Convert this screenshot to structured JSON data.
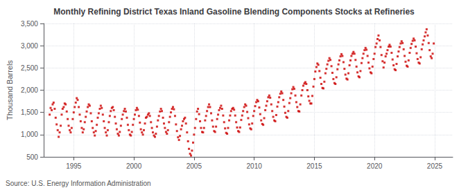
{
  "chart_data": {
    "type": "scatter",
    "title": "Monthly Refining District Texas Inland Gasoline Blending Components Stocks at Refineries",
    "ylabel": "Thousand Barrels",
    "annotation": "Source: U.S. Energy Information Administration",
    "color": "#cc0000",
    "marker": "square",
    "grid": true,
    "xlim": [
      1992.5,
      2026.5
    ],
    "xticks": [
      1995,
      2000,
      2005,
      2010,
      2015,
      2020,
      2025
    ],
    "ylim": [
      500,
      3500
    ],
    "yticks": [
      500,
      {
        "value": 1000,
        "label": "1,000"
      },
      {
        "value": 1500,
        "label": "1,500"
      },
      {
        "value": 2000,
        "label": "2,000"
      },
      {
        "value": 2500,
        "label": "2,500"
      },
      {
        "value": 3000,
        "label": "3,000"
      },
      {
        "value": 3500,
        "label": "3,500"
      }
    ],
    "x": [
      1993.0,
      1993.08,
      1993.17,
      1993.25,
      1993.33,
      1993.42,
      1993.5,
      1993.58,
      1993.67,
      1993.75,
      1993.83,
      1993.92,
      1994.0,
      1994.08,
      1994.17,
      1994.25,
      1994.33,
      1994.42,
      1994.5,
      1994.58,
      1994.67,
      1994.75,
      1994.83,
      1994.92,
      1995.0,
      1995.08,
      1995.17,
      1995.25,
      1995.33,
      1995.42,
      1995.5,
      1995.58,
      1995.67,
      1995.75,
      1995.83,
      1995.92,
      1996.0,
      1996.08,
      1996.17,
      1996.25,
      1996.33,
      1996.42,
      1996.5,
      1996.58,
      1996.67,
      1996.75,
      1996.83,
      1996.92,
      1997.0,
      1997.08,
      1997.17,
      1997.25,
      1997.33,
      1997.42,
      1997.5,
      1997.58,
      1997.67,
      1997.75,
      1997.83,
      1997.92,
      1998.0,
      1998.08,
      1998.17,
      1998.25,
      1998.33,
      1998.42,
      1998.5,
      1998.58,
      1998.67,
      1998.75,
      1998.83,
      1998.92,
      1999.0,
      1999.08,
      1999.17,
      1999.25,
      1999.33,
      1999.42,
      1999.5,
      1999.58,
      1999.67,
      1999.75,
      1999.83,
      1999.92,
      2000.0,
      2000.08,
      2000.17,
      2000.25,
      2000.33,
      2000.42,
      2000.5,
      2000.58,
      2000.67,
      2000.75,
      2000.83,
      2000.92,
      2001.0,
      2001.08,
      2001.17,
      2001.25,
      2001.33,
      2001.42,
      2001.5,
      2001.58,
      2001.67,
      2001.75,
      2001.83,
      2001.92,
      2002.0,
      2002.08,
      2002.17,
      2002.25,
      2002.33,
      2002.42,
      2002.5,
      2002.58,
      2002.67,
      2002.75,
      2002.83,
      2002.92,
      2003.0,
      2003.08,
      2003.17,
      2003.25,
      2003.33,
      2003.42,
      2003.5,
      2003.58,
      2003.67,
      2003.75,
      2003.83,
      2003.92,
      2004.0,
      2004.08,
      2004.17,
      2004.25,
      2004.33,
      2004.42,
      2004.5,
      2004.58,
      2004.67,
      2004.75,
      2004.83,
      2004.92,
      2005.0,
      2005.08,
      2005.17,
      2005.25,
      2005.33,
      2005.42,
      2005.5,
      2005.58,
      2005.67,
      2005.75,
      2005.83,
      2005.92,
      2006.0,
      2006.08,
      2006.17,
      2006.25,
      2006.33,
      2006.42,
      2006.5,
      2006.58,
      2006.67,
      2006.75,
      2006.83,
      2006.92,
      2007.0,
      2007.08,
      2007.17,
      2007.25,
      2007.33,
      2007.42,
      2007.5,
      2007.58,
      2007.67,
      2007.75,
      2007.83,
      2007.92,
      2008.0,
      2008.08,
      2008.17,
      2008.25,
      2008.33,
      2008.42,
      2008.5,
      2008.58,
      2008.67,
      2008.75,
      2008.83,
      2008.92,
      2009.0,
      2009.08,
      2009.17,
      2009.25,
      2009.33,
      2009.42,
      2009.5,
      2009.58,
      2009.67,
      2009.75,
      2009.83,
      2009.92,
      2010.0,
      2010.08,
      2010.17,
      2010.25,
      2010.33,
      2010.42,
      2010.5,
      2010.58,
      2010.67,
      2010.75,
      2010.83,
      2010.92,
      2011.0,
      2011.08,
      2011.17,
      2011.25,
      2011.33,
      2011.42,
      2011.5,
      2011.58,
      2011.67,
      2011.75,
      2011.83,
      2011.92,
      2012.0,
      2012.08,
      2012.17,
      2012.25,
      2012.33,
      2012.42,
      2012.5,
      2012.58,
      2012.67,
      2012.75,
      2012.83,
      2012.92,
      2013.0,
      2013.08,
      2013.17,
      2013.25,
      2013.33,
      2013.42,
      2013.5,
      2013.58,
      2013.67,
      2013.75,
      2013.83,
      2013.92,
      2014.0,
      2014.08,
      2014.17,
      2014.25,
      2014.33,
      2014.42,
      2014.5,
      2014.58,
      2014.67,
      2014.75,
      2014.83,
      2014.92,
      2015.0,
      2015.08,
      2015.17,
      2015.25,
      2015.33,
      2015.42,
      2015.5,
      2015.58,
      2015.67,
      2015.75,
      2015.83,
      2015.92,
      2016.0,
      2016.08,
      2016.17,
      2016.25,
      2016.33,
      2016.42,
      2016.5,
      2016.58,
      2016.67,
      2016.75,
      2016.83,
      2016.92,
      2017.0,
      2017.08,
      2017.17,
      2017.25,
      2017.33,
      2017.42,
      2017.5,
      2017.58,
      2017.67,
      2017.75,
      2017.83,
      2017.92,
      2018.0,
      2018.08,
      2018.17,
      2018.25,
      2018.33,
      2018.42,
      2018.5,
      2018.58,
      2018.67,
      2018.75,
      2018.83,
      2018.92,
      2019.0,
      2019.08,
      2019.17,
      2019.25,
      2019.33,
      2019.42,
      2019.5,
      2019.58,
      2019.67,
      2019.75,
      2019.83,
      2019.92,
      2020.0,
      2020.08,
      2020.17,
      2020.25,
      2020.33,
      2020.42,
      2020.5,
      2020.58,
      2020.67,
      2020.75,
      2020.83,
      2020.92,
      2021.0,
      2021.08,
      2021.17,
      2021.25,
      2021.33,
      2021.42,
      2021.5,
      2021.58,
      2021.67,
      2021.75,
      2021.83,
      2021.92,
      2022.0,
      2022.08,
      2022.17,
      2022.25,
      2022.33,
      2022.42,
      2022.5,
      2022.58,
      2022.67,
      2022.75,
      2022.83,
      2022.92,
      2023.0,
      2023.08,
      2023.17,
      2023.25,
      2023.33,
      2023.42,
      2023.5,
      2023.58,
      2023.67,
      2023.75,
      2023.83,
      2023.92,
      2024.0,
      2024.08,
      2024.17,
      2024.25,
      2024.33,
      2024.42,
      2024.5,
      2024.58,
      2024.67,
      2024.75,
      2024.83,
      2024.92
    ],
    "values": [
      1450,
      1600,
      1550,
      1680,
      1720,
      1580,
      1380,
      1230,
      1100,
      950,
      1050,
      1200,
      1450,
      1580,
      1620,
      1700,
      1680,
      1520,
      1350,
      1200,
      1100,
      1050,
      1150,
      1350,
      1500,
      1620,
      1720,
      1820,
      1780,
      1620,
      1450,
      1300,
      1150,
      1050,
      1120,
      1280,
      1400,
      1520,
      1620,
      1680,
      1650,
      1480,
      1300,
      1150,
      1050,
      980,
      1080,
      1220,
      1380,
      1480,
      1580,
      1650,
      1600,
      1450,
      1300,
      1150,
      1050,
      980,
      1100,
      1280,
      1420,
      1530,
      1600,
      1620,
      1550,
      1400,
      1250,
      1120,
      1020,
      980,
      1060,
      1200,
      1350,
      1450,
      1530,
      1580,
      1520,
      1380,
      1220,
      1100,
      1000,
      980,
      1060,
      1220,
      1350,
      1450,
      1550,
      1600,
      1560,
      1420,
      1270,
      1120,
      1050,
      1000,
      1100,
      1250,
      1380,
      1400,
      1450,
      1480,
      1420,
      1280,
      1150,
      1050,
      980,
      950,
      1020,
      1180,
      1320,
      1420,
      1520,
      1580,
      1530,
      1380,
      1250,
      1150,
      1060,
      1020,
      1100,
      1280,
      1400,
      1500,
      1580,
      1620,
      1570,
      1420,
      1230,
      1080,
      940,
      880,
      970,
      1120,
      1200,
      1300,
      1350,
      1380,
      1250,
      1050,
      850,
      680,
      570,
      530,
      640,
      820,
      1000,
      1150,
      1350,
      1520,
      1580,
      1460,
      1300,
      1150,
      1060,
      1050,
      1150,
      1320,
      1420,
      1530,
      1620,
      1680,
      1620,
      1480,
      1320,
      1180,
      1080,
      1060,
      1180,
      1350,
      1450,
      1550,
      1600,
      1650,
      1580,
      1430,
      1280,
      1140,
      1040,
      1020,
      1150,
      1320,
      1430,
      1530,
      1580,
      1600,
      1560,
      1430,
      1280,
      1160,
      1080,
      1060,
      1160,
      1330,
      1430,
      1530,
      1620,
      1680,
      1650,
      1510,
      1370,
      1230,
      1140,
      1120,
      1250,
      1420,
      1530,
      1640,
      1730,
      1780,
      1750,
      1610,
      1460,
      1320,
      1240,
      1220,
      1370,
      1550,
      1650,
      1750,
      1840,
      1880,
      1830,
      1680,
      1530,
      1400,
      1320,
      1300,
      1440,
      1630,
      1730,
      1840,
      1920,
      1970,
      1930,
      1780,
      1630,
      1490,
      1400,
      1380,
      1530,
      1710,
      1820,
      1930,
      2020,
      2070,
      2030,
      1880,
      1730,
      1620,
      1530,
      1520,
      1680,
      1880,
      2000,
      2100,
      2150,
      2180,
      2140,
      2000,
      1860,
      1760,
      1700,
      1700,
      1870,
      2080,
      2250,
      2420,
      2520,
      2600,
      2570,
      2430,
      2280,
      2140,
      2050,
      2040,
      2190,
      2380,
      2480,
      2580,
      2660,
      2720,
      2680,
      2540,
      2390,
      2250,
      2160,
      2140,
      2290,
      2470,
      2580,
      2670,
      2760,
      2810,
      2770,
      2630,
      2480,
      2350,
      2260,
      2240,
      2380,
      2560,
      2670,
      2770,
      2820,
      2860,
      2820,
      2680,
      2530,
      2400,
      2310,
      2290,
      2430,
      2610,
      2720,
      2820,
      2900,
      2950,
      2910,
      2770,
      2620,
      2490,
      2400,
      2380,
      2530,
      2700,
      2820,
      2970,
      3050,
      3150,
      3230,
      3120,
      2970,
      2790,
      2650,
      2510,
      2620,
      2760,
      2820,
      2900,
      2980,
      3020,
      2980,
      2840,
      2690,
      2560,
      2470,
      2450,
      2590,
      2760,
      2870,
      2970,
      3050,
      3100,
      3060,
      2920,
      2770,
      2640,
      2550,
      2530,
      2670,
      2840,
      2950,
      3040,
      3110,
      3160,
      3120,
      2980,
      2830,
      2700,
      2620,
      2600,
      2740,
      2920,
      3030,
      3120,
      3210,
      3300,
      3370,
      3230,
      3060,
      2900,
      2760,
      2720,
      2820,
      3050
    ]
  }
}
